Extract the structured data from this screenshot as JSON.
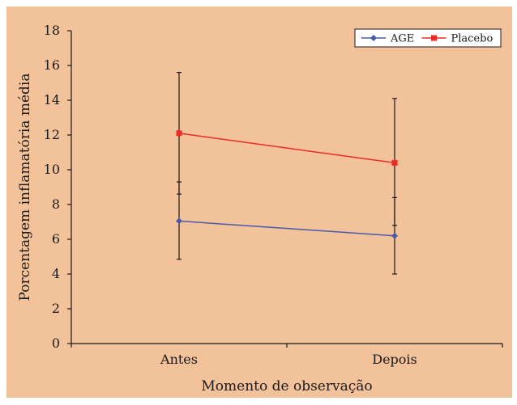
{
  "colors": {
    "background": "#f2c29b",
    "axis": "#1a1a1a",
    "legend_bg": "#ffffff",
    "age": "#4a5aa8",
    "placebo": "#ee2a24",
    "error_bar": "#1a1a1a"
  },
  "chart_data": {
    "type": "line",
    "categories": [
      "Antes",
      "Depois"
    ],
    "xlabel": "Momento de observação",
    "ylabel": "Porcentagem inflamatória média",
    "ylim": [
      0,
      18
    ],
    "yticks": [
      0,
      2,
      4,
      6,
      8,
      10,
      12,
      14,
      16,
      18
    ],
    "grid": false,
    "legend_position": "top-right",
    "series": [
      {
        "name": "AGE",
        "marker": "diamond",
        "color_key": "age",
        "values": [
          7.05,
          6.2
        ],
        "error_low": [
          4.85,
          4.0
        ],
        "error_high": [
          9.3,
          8.4
        ]
      },
      {
        "name": "Placebo",
        "marker": "square",
        "color_key": "placebo",
        "values": [
          12.1,
          10.4
        ],
        "error_low": [
          8.6,
          6.8
        ],
        "error_high": [
          15.6,
          14.1
        ]
      }
    ]
  }
}
